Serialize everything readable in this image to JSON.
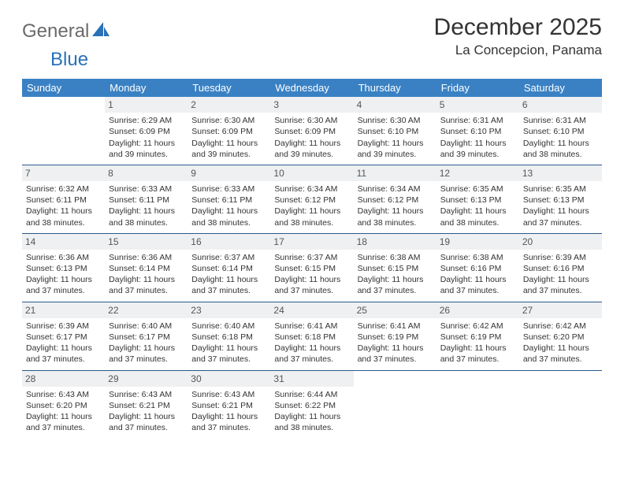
{
  "logo": {
    "general": "General",
    "blue": "Blue"
  },
  "title": "December 2025",
  "location": "La Concepcion, Panama",
  "colors": {
    "header_bg": "#3a81c4",
    "header_text": "#ffffff",
    "daynum_bg": "#eef0f2",
    "rule": "#2a5a8a",
    "logo_gray": "#6a6a6a",
    "logo_blue": "#2a71b8",
    "text": "#333333"
  },
  "dayHeaders": [
    "Sunday",
    "Monday",
    "Tuesday",
    "Wednesday",
    "Thursday",
    "Friday",
    "Saturday"
  ],
  "weeks": [
    [
      {
        "n": "",
        "sr": "",
        "ss": "",
        "dl": ""
      },
      {
        "n": "1",
        "sr": "Sunrise: 6:29 AM",
        "ss": "Sunset: 6:09 PM",
        "dl": "Daylight: 11 hours and 39 minutes."
      },
      {
        "n": "2",
        "sr": "Sunrise: 6:30 AM",
        "ss": "Sunset: 6:09 PM",
        "dl": "Daylight: 11 hours and 39 minutes."
      },
      {
        "n": "3",
        "sr": "Sunrise: 6:30 AM",
        "ss": "Sunset: 6:09 PM",
        "dl": "Daylight: 11 hours and 39 minutes."
      },
      {
        "n": "4",
        "sr": "Sunrise: 6:30 AM",
        "ss": "Sunset: 6:10 PM",
        "dl": "Daylight: 11 hours and 39 minutes."
      },
      {
        "n": "5",
        "sr": "Sunrise: 6:31 AM",
        "ss": "Sunset: 6:10 PM",
        "dl": "Daylight: 11 hours and 39 minutes."
      },
      {
        "n": "6",
        "sr": "Sunrise: 6:31 AM",
        "ss": "Sunset: 6:10 PM",
        "dl": "Daylight: 11 hours and 38 minutes."
      }
    ],
    [
      {
        "n": "7",
        "sr": "Sunrise: 6:32 AM",
        "ss": "Sunset: 6:11 PM",
        "dl": "Daylight: 11 hours and 38 minutes."
      },
      {
        "n": "8",
        "sr": "Sunrise: 6:33 AM",
        "ss": "Sunset: 6:11 PM",
        "dl": "Daylight: 11 hours and 38 minutes."
      },
      {
        "n": "9",
        "sr": "Sunrise: 6:33 AM",
        "ss": "Sunset: 6:11 PM",
        "dl": "Daylight: 11 hours and 38 minutes."
      },
      {
        "n": "10",
        "sr": "Sunrise: 6:34 AM",
        "ss": "Sunset: 6:12 PM",
        "dl": "Daylight: 11 hours and 38 minutes."
      },
      {
        "n": "11",
        "sr": "Sunrise: 6:34 AM",
        "ss": "Sunset: 6:12 PM",
        "dl": "Daylight: 11 hours and 38 minutes."
      },
      {
        "n": "12",
        "sr": "Sunrise: 6:35 AM",
        "ss": "Sunset: 6:13 PM",
        "dl": "Daylight: 11 hours and 38 minutes."
      },
      {
        "n": "13",
        "sr": "Sunrise: 6:35 AM",
        "ss": "Sunset: 6:13 PM",
        "dl": "Daylight: 11 hours and 37 minutes."
      }
    ],
    [
      {
        "n": "14",
        "sr": "Sunrise: 6:36 AM",
        "ss": "Sunset: 6:13 PM",
        "dl": "Daylight: 11 hours and 37 minutes."
      },
      {
        "n": "15",
        "sr": "Sunrise: 6:36 AM",
        "ss": "Sunset: 6:14 PM",
        "dl": "Daylight: 11 hours and 37 minutes."
      },
      {
        "n": "16",
        "sr": "Sunrise: 6:37 AM",
        "ss": "Sunset: 6:14 PM",
        "dl": "Daylight: 11 hours and 37 minutes."
      },
      {
        "n": "17",
        "sr": "Sunrise: 6:37 AM",
        "ss": "Sunset: 6:15 PM",
        "dl": "Daylight: 11 hours and 37 minutes."
      },
      {
        "n": "18",
        "sr": "Sunrise: 6:38 AM",
        "ss": "Sunset: 6:15 PM",
        "dl": "Daylight: 11 hours and 37 minutes."
      },
      {
        "n": "19",
        "sr": "Sunrise: 6:38 AM",
        "ss": "Sunset: 6:16 PM",
        "dl": "Daylight: 11 hours and 37 minutes."
      },
      {
        "n": "20",
        "sr": "Sunrise: 6:39 AM",
        "ss": "Sunset: 6:16 PM",
        "dl": "Daylight: 11 hours and 37 minutes."
      }
    ],
    [
      {
        "n": "21",
        "sr": "Sunrise: 6:39 AM",
        "ss": "Sunset: 6:17 PM",
        "dl": "Daylight: 11 hours and 37 minutes."
      },
      {
        "n": "22",
        "sr": "Sunrise: 6:40 AM",
        "ss": "Sunset: 6:17 PM",
        "dl": "Daylight: 11 hours and 37 minutes."
      },
      {
        "n": "23",
        "sr": "Sunrise: 6:40 AM",
        "ss": "Sunset: 6:18 PM",
        "dl": "Daylight: 11 hours and 37 minutes."
      },
      {
        "n": "24",
        "sr": "Sunrise: 6:41 AM",
        "ss": "Sunset: 6:18 PM",
        "dl": "Daylight: 11 hours and 37 minutes."
      },
      {
        "n": "25",
        "sr": "Sunrise: 6:41 AM",
        "ss": "Sunset: 6:19 PM",
        "dl": "Daylight: 11 hours and 37 minutes."
      },
      {
        "n": "26",
        "sr": "Sunrise: 6:42 AM",
        "ss": "Sunset: 6:19 PM",
        "dl": "Daylight: 11 hours and 37 minutes."
      },
      {
        "n": "27",
        "sr": "Sunrise: 6:42 AM",
        "ss": "Sunset: 6:20 PM",
        "dl": "Daylight: 11 hours and 37 minutes."
      }
    ],
    [
      {
        "n": "28",
        "sr": "Sunrise: 6:43 AM",
        "ss": "Sunset: 6:20 PM",
        "dl": "Daylight: 11 hours and 37 minutes."
      },
      {
        "n": "29",
        "sr": "Sunrise: 6:43 AM",
        "ss": "Sunset: 6:21 PM",
        "dl": "Daylight: 11 hours and 37 minutes."
      },
      {
        "n": "30",
        "sr": "Sunrise: 6:43 AM",
        "ss": "Sunset: 6:21 PM",
        "dl": "Daylight: 11 hours and 37 minutes."
      },
      {
        "n": "31",
        "sr": "Sunrise: 6:44 AM",
        "ss": "Sunset: 6:22 PM",
        "dl": "Daylight: 11 hours and 38 minutes."
      },
      {
        "n": "",
        "sr": "",
        "ss": "",
        "dl": ""
      },
      {
        "n": "",
        "sr": "",
        "ss": "",
        "dl": ""
      },
      {
        "n": "",
        "sr": "",
        "ss": "",
        "dl": ""
      }
    ]
  ]
}
